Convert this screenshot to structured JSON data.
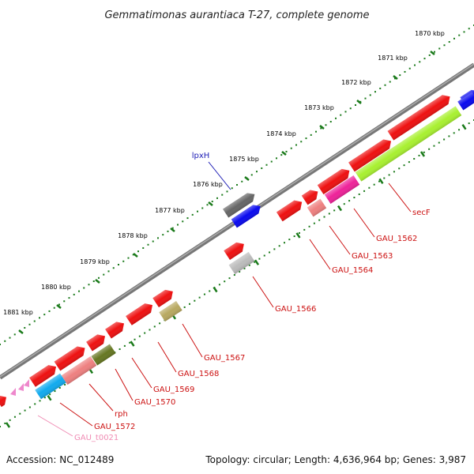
{
  "title": "Gemmatimonas aurantiaca T-27, complete genome",
  "footer": {
    "accession": "Accession: NC_012489",
    "summary": "Topology: circular; Length: 4,636,964 bp; Genes: 3,987"
  },
  "ticks": [
    "1870 kbp",
    "1871 kbp",
    "1872 kbp",
    "1873 kbp",
    "1874 kbp",
    "1875 kbp",
    "1876 kbp",
    "1877 kbp",
    "1878 kbp",
    "1879 kbp",
    "1880 kbp",
    "1881 kbp"
  ],
  "gene_labels": [
    {
      "text": "lpxH",
      "color": "#1a1ab4"
    },
    {
      "text": "secF",
      "color": "#cc1111"
    },
    {
      "text": "GAU_1562",
      "color": "#cc1111"
    },
    {
      "text": "GAU_1563",
      "color": "#cc1111"
    },
    {
      "text": "GAU_1564",
      "color": "#cc1111"
    },
    {
      "text": "GAU_1566",
      "color": "#cc1111"
    },
    {
      "text": "GAU_1567",
      "color": "#cc1111"
    },
    {
      "text": "GAU_1568",
      "color": "#cc1111"
    },
    {
      "text": "GAU_1569",
      "color": "#cc1111"
    },
    {
      "text": "GAU_1570",
      "color": "#cc1111"
    },
    {
      "text": "rph",
      "color": "#cc1111"
    },
    {
      "text": "GAU_1572",
      "color": "#cc1111"
    },
    {
      "text": "GAU_t0021",
      "color": "#f08cb4"
    }
  ],
  "colors": {
    "gene_red": "#ee1111",
    "backbone": "#888888",
    "tick_green": "#1a7a1a",
    "lpxH_dark_gray": "#666666",
    "blue": "#0a0aee",
    "light_gray": "#bbbbbb",
    "salmon": "#ee8080",
    "magenta": "#ee2299",
    "lime": "#a8f030",
    "olive_tan": "#b8a860",
    "olive_green": "#667722",
    "cyan": "#11aaee",
    "pink": "#ee88cc"
  }
}
